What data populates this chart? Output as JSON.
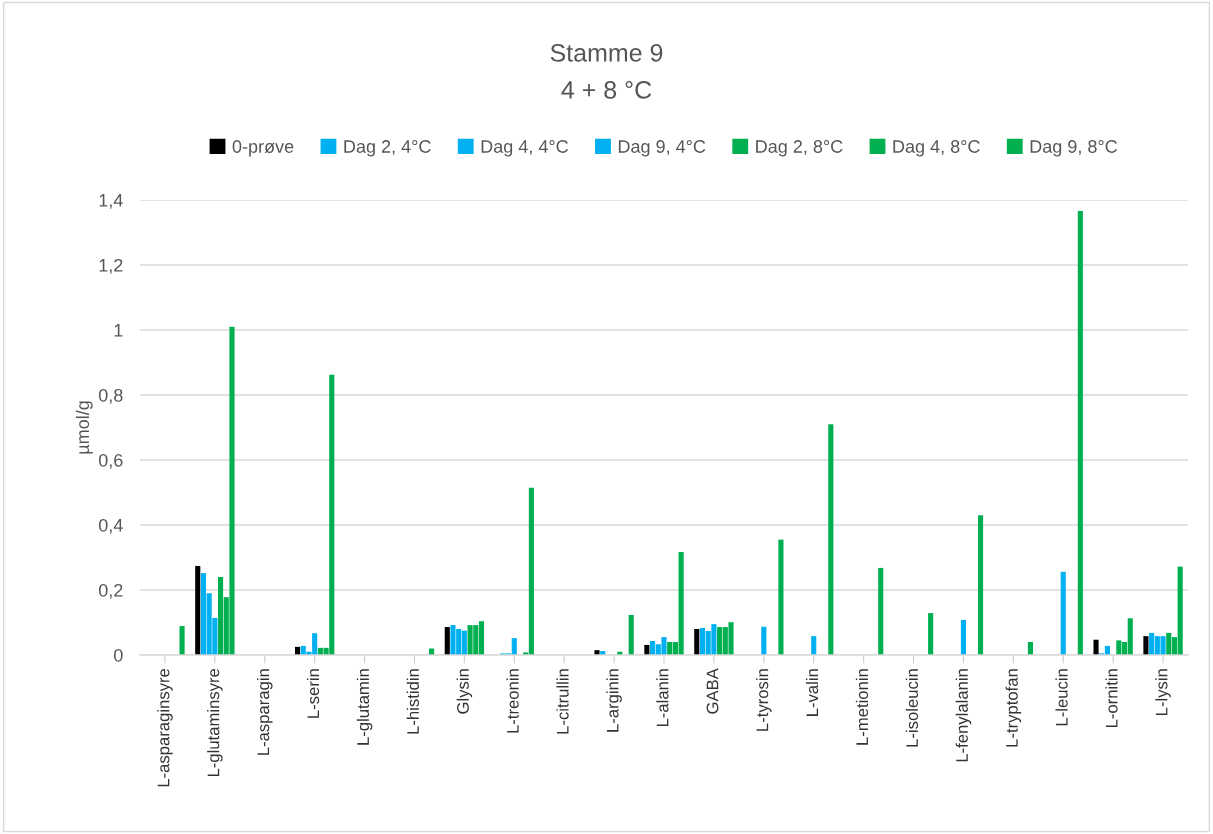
{
  "chart_data": {
    "type": "bar",
    "title": "Stamme 9",
    "subtitle": "4 + 8 °C",
    "ylabel": "µmol/g",
    "categories": [
      "L-asparaginsyre",
      "L-glutaminsyre",
      "L-asparagin",
      "L-serin",
      "L-glutamin",
      "L-histidin",
      "Glysin",
      "L-treonin",
      "L-citrullin",
      "L-arginin",
      "L-alanin",
      "GABA",
      "L-tyrosin",
      "L-valin",
      "L-metionin",
      "L-isoleucin",
      "L-fenylalanin",
      "L-tryptofan",
      "L-leucin",
      "L-ornitin",
      "L-lysin"
    ],
    "series": [
      {
        "name": "0-prøve",
        "color": "#000000",
        "values": [
          0,
          0.274,
          0,
          0.025,
          0,
          0,
          0.086,
          0,
          0,
          0.015,
          0.031,
          0.08,
          0,
          0,
          0,
          0,
          0,
          0,
          0,
          0.047,
          0.058
        ]
      },
      {
        "name": "Dag 2, 4°C",
        "color": "#00b0f0",
        "values": [
          0,
          0.252,
          0,
          0.028,
          0,
          0,
          0.092,
          0.005,
          0,
          0.012,
          0.043,
          0.083,
          0,
          0,
          null,
          0,
          0,
          0,
          0,
          0.005,
          0.068
        ]
      },
      {
        "name": "Dag 4, 4°C",
        "color": "#00b0f0",
        "values": [
          0,
          0.19,
          0,
          0.01,
          0,
          0,
          0.08,
          0.005,
          0,
          0,
          0.033,
          0.074,
          0,
          0,
          0,
          0,
          0,
          0,
          0,
          0.028,
          0.058
        ]
      },
      {
        "name": "Dag 9, 4°C",
        "color": "#00b0f0",
        "values": [
          0,
          0.114,
          0,
          0.067,
          0,
          0,
          0.075,
          0.052,
          0,
          0,
          0.055,
          0.095,
          0.087,
          0.058,
          0,
          0,
          0.108,
          0,
          0.256,
          0,
          0.058
        ]
      },
      {
        "name": "Dag 2, 8°C",
        "color": "#00b050",
        "values": [
          0,
          0.24,
          0,
          0.022,
          0,
          0,
          0.092,
          null,
          0,
          0.01,
          0.04,
          0.086,
          0,
          0,
          0,
          0,
          0,
          0,
          0,
          0.045,
          0.068
        ]
      },
      {
        "name": "Dag 4, 8°C",
        "color": "#00b050",
        "values": [
          0,
          0.178,
          0,
          0.022,
          0,
          0,
          0.092,
          0.008,
          0,
          0,
          0.04,
          0.086,
          0,
          0,
          0,
          0,
          0,
          0,
          0,
          0.04,
          0.055
        ]
      },
      {
        "name": "Dag 9, 8°C",
        "color": "#00b050",
        "values": [
          0.089,
          1.01,
          0,
          0.862,
          0,
          0.02,
          0.104,
          0.515,
          0,
          0.123,
          0.317,
          0.101,
          0.355,
          0.71,
          0.268,
          0.129,
          0.43,
          0.04,
          1.366,
          0.113,
          0.272
        ]
      }
    ],
    "ylim": [
      0,
      1.4
    ],
    "yticks": [
      0,
      {
        "value": 0.2,
        "label": "0,2"
      },
      {
        "value": 0.4,
        "label": "0,4"
      },
      {
        "value": 0.6,
        "label": "0,6"
      },
      {
        "value": 0.8,
        "label": "0,8"
      },
      1,
      {
        "value": 1.2,
        "label": "1,2"
      },
      {
        "value": 1.4,
        "label": "1,4"
      }
    ],
    "grid": "y",
    "legend": "top"
  }
}
